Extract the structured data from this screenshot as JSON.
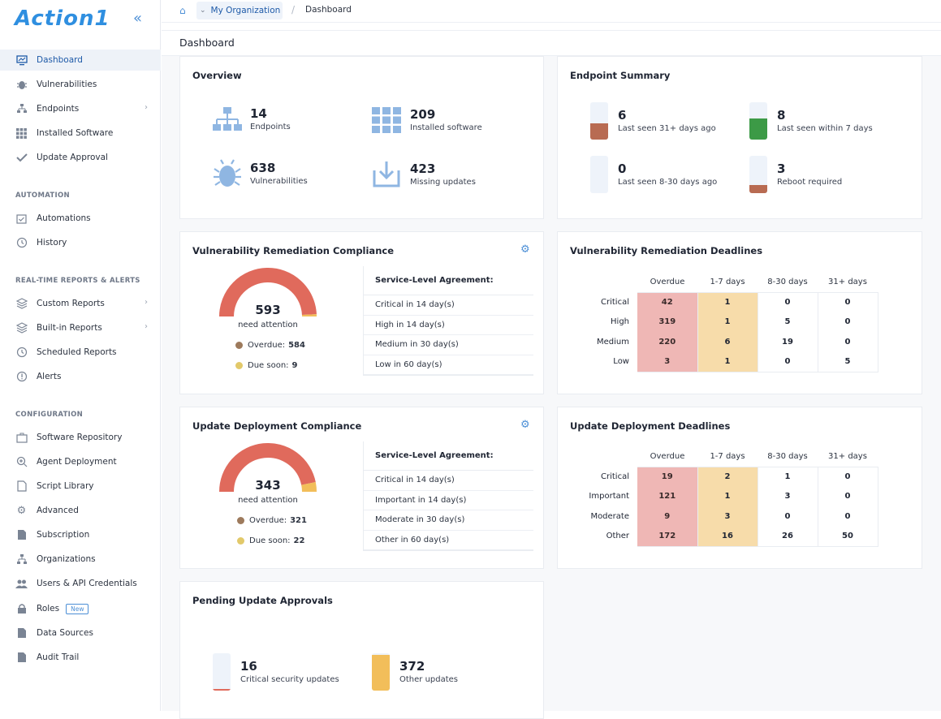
{
  "app": {
    "logo": "Action1"
  },
  "breadcrumb": {
    "org": "My Organization",
    "page": "Dashboard"
  },
  "page_title": "Dashboard",
  "sidebar": {
    "items": [
      {
        "label": "Dashboard"
      },
      {
        "label": "Vulnerabilities"
      },
      {
        "label": "Endpoints"
      },
      {
        "label": "Installed Software"
      },
      {
        "label": "Update Approval"
      }
    ],
    "automation_section": "AUTOMATION",
    "automation_items": [
      {
        "label": "Automations"
      },
      {
        "label": "History"
      }
    ],
    "reports_section": "REAL-TIME REPORTS & ALERTS",
    "reports_items": [
      {
        "label": "Custom Reports"
      },
      {
        "label": "Built-in Reports"
      },
      {
        "label": "Scheduled Reports"
      },
      {
        "label": "Alerts"
      }
    ],
    "config_section": "CONFIGURATION",
    "config_items": [
      {
        "label": "Software Repository"
      },
      {
        "label": "Agent Deployment"
      },
      {
        "label": "Script Library"
      },
      {
        "label": "Advanced"
      },
      {
        "label": "Subscription"
      },
      {
        "label": "Organizations"
      },
      {
        "label": "Users & API Credentials"
      },
      {
        "label": "Roles"
      },
      {
        "label": "Data Sources"
      },
      {
        "label": "Audit Trail"
      }
    ],
    "new_badge": "New"
  },
  "overview": {
    "title": "Overview",
    "endpoints": {
      "value": "14",
      "label": "Endpoints"
    },
    "software": {
      "value": "209",
      "label": "Installed software"
    },
    "vulns": {
      "value": "638",
      "label": "Vulnerabilities"
    },
    "updates": {
      "value": "423",
      "label": "Missing updates"
    }
  },
  "endpoint_summary": {
    "title": "Endpoint Summary",
    "items": [
      {
        "value": "6",
        "label": "Last seen 31+ days ago",
        "fraction": 0.43,
        "color": "#b86b52"
      },
      {
        "value": "8",
        "label": "Last seen within 7 days",
        "fraction": 0.57,
        "color": "#3c9a46"
      },
      {
        "value": "0",
        "label": "Last seen 8-30 days ago",
        "fraction": 0,
        "color": "#b86b52"
      },
      {
        "value": "3",
        "label": "Reboot required",
        "fraction": 0.21,
        "color": "#b86b52"
      }
    ]
  },
  "vuln_compliance": {
    "title": "Vulnerability Remediation Compliance",
    "total": "593",
    "sub": "need attention",
    "overdue_label": "Overdue:",
    "overdue": "584",
    "due_label": "Due soon:",
    "due": "9",
    "overdue_color": "#e06a5c",
    "due_color": "#f2be5a",
    "sla_head": "Service-Level Agreement:",
    "sla": [
      "Critical in 14 day(s)",
      "High in 14 day(s)",
      "Medium in 30 day(s)",
      "Low in 60 day(s)"
    ]
  },
  "update_compliance": {
    "title": "Update Deployment Compliance",
    "total": "343",
    "sub": "need attention",
    "overdue_label": "Overdue:",
    "overdue": "321",
    "due_label": "Due soon:",
    "due": "22",
    "overdue_color": "#e06a5c",
    "due_color": "#f2be5a",
    "sla_head": "Service-Level Agreement:",
    "sla": [
      "Critical in 14 day(s)",
      "Important in 14 day(s)",
      "Moderate in 30 day(s)",
      "Other in 60 day(s)"
    ]
  },
  "vuln_deadlines": {
    "title": "Vulnerability Remediation Deadlines",
    "columns": [
      "Overdue",
      "1-7 days",
      "8-30 days",
      "31+ days"
    ],
    "rows": [
      {
        "label": "Critical",
        "values": [
          "42",
          "1",
          "0",
          "0"
        ]
      },
      {
        "label": "High",
        "values": [
          "319",
          "1",
          "5",
          "0"
        ]
      },
      {
        "label": "Medium",
        "values": [
          "220",
          "6",
          "19",
          "0"
        ]
      },
      {
        "label": "Low",
        "values": [
          "3",
          "1",
          "0",
          "5"
        ]
      }
    ]
  },
  "update_deadlines": {
    "title": "Update Deployment Deadlines",
    "columns": [
      "Overdue",
      "1-7 days",
      "8-30 days",
      "31+ days"
    ],
    "rows": [
      {
        "label": "Critical",
        "values": [
          "19",
          "2",
          "1",
          "0"
        ]
      },
      {
        "label": "Important",
        "values": [
          "121",
          "1",
          "3",
          "0"
        ]
      },
      {
        "label": "Moderate",
        "values": [
          "9",
          "3",
          "0",
          "0"
        ]
      },
      {
        "label": "Other",
        "values": [
          "172",
          "16",
          "26",
          "50"
        ]
      }
    ]
  },
  "pending": {
    "title": "Pending Update Approvals",
    "critical": {
      "value": "16",
      "label": "Critical security updates",
      "fraction": 0.04,
      "color": "#e06a5c"
    },
    "other": {
      "value": "372",
      "label": "Other updates",
      "fraction": 0.96,
      "color": "#f2be5a"
    }
  }
}
